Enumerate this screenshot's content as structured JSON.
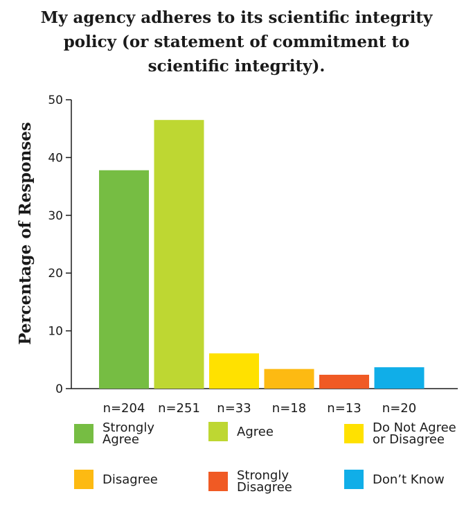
{
  "chart_data": {
    "type": "bar",
    "title_lines": [
      "My agency adheres to its scientific integrity",
      "policy (or statement of commitment to",
      "scientific integrity)."
    ],
    "ylabel": "Percentage of Responses",
    "xlabel": "",
    "ylim": [
      0,
      50
    ],
    "yticks": [
      0,
      10,
      20,
      30,
      40,
      50
    ],
    "grid": false,
    "categories": [
      "n=204",
      "n=251",
      "n=33",
      "n=18",
      "n=13",
      "n=20"
    ],
    "values": [
      37.8,
      46.5,
      6.1,
      3.4,
      2.4,
      3.7
    ],
    "colors": [
      "#76bd43",
      "#bed732",
      "#ffe100",
      "#fdba12",
      "#f05a24",
      "#10aee8"
    ],
    "legend": [
      {
        "label": "Strongly\nAgree",
        "color": "#76bd43"
      },
      {
        "label": "Agree",
        "color": "#bed732"
      },
      {
        "label": "Do Not Agree\nor Disagree",
        "color": "#ffe100"
      },
      {
        "label": "Disagree",
        "color": "#fdba12"
      },
      {
        "label": "Strongly\nDisagree",
        "color": "#f05a24"
      },
      {
        "label": "Don’t Know",
        "color": "#10aee8"
      }
    ],
    "legend_placement": "bottom"
  }
}
